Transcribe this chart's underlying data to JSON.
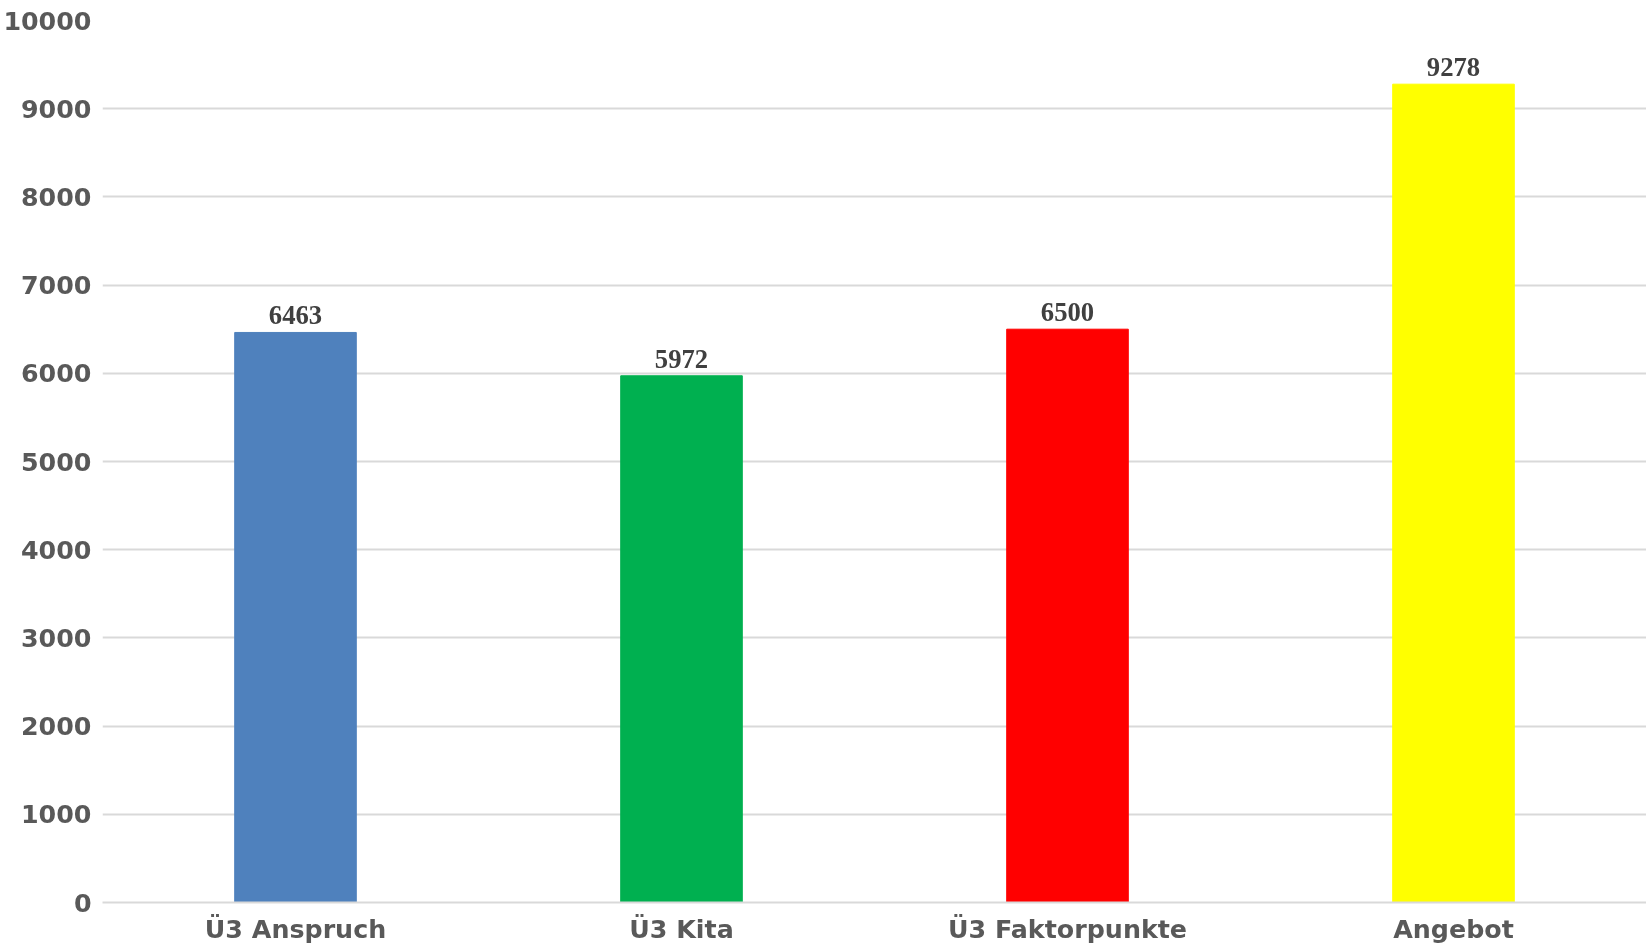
{
  "chart_data": {
    "type": "bar",
    "categories": [
      "Ü3 Anspruch",
      "Ü3 Kita",
      "Ü3 Faktorpunkte",
      "Angebot"
    ],
    "values": [
      6463,
      5972,
      6500,
      9278
    ],
    "colors": [
      "#4f81bd",
      "#00b050",
      "#ff0000",
      "#ffff00"
    ],
    "ylim": [
      0,
      10000
    ],
    "yticks": [
      0,
      1000,
      2000,
      3000,
      4000,
      5000,
      6000,
      7000,
      8000,
      9000,
      10000
    ],
    "grid": "y",
    "data_labels": true
  }
}
